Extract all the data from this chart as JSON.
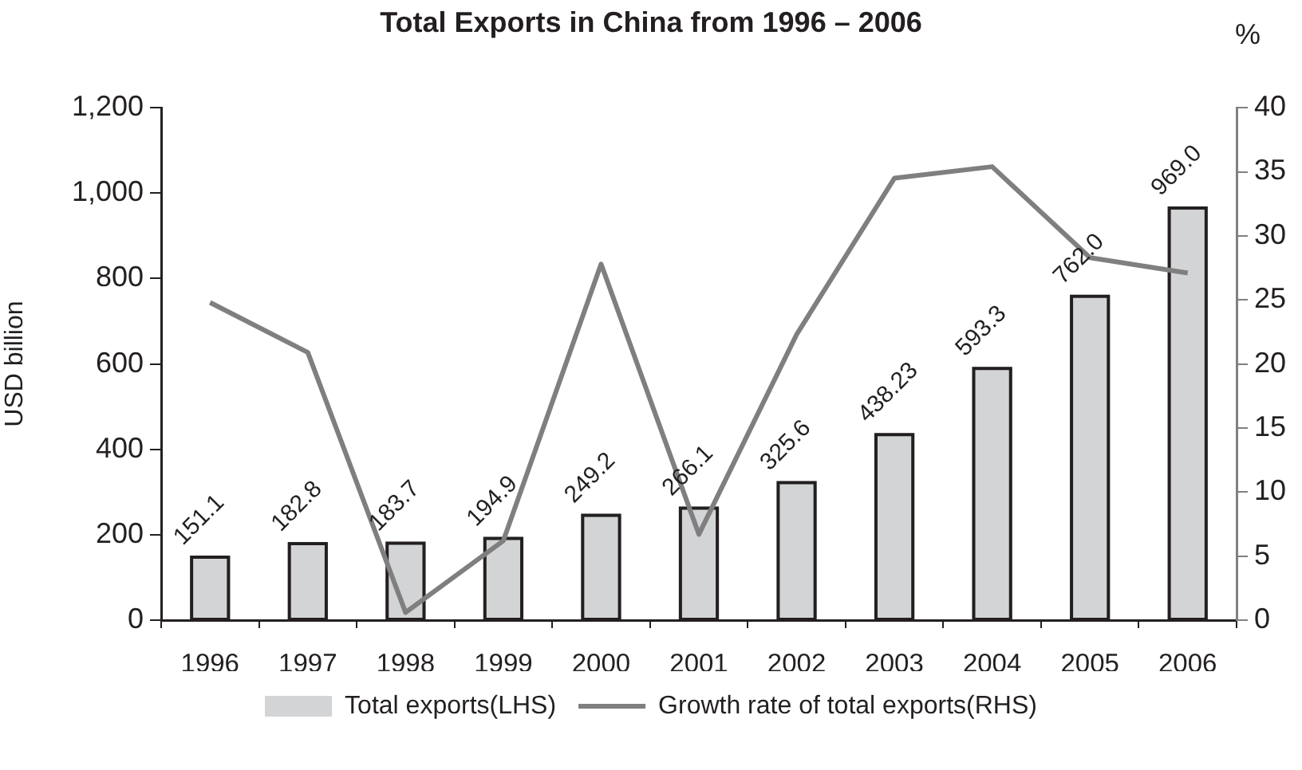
{
  "chart_data": {
    "type": "bar",
    "title": "Total Exports in China from 1996 – 2006",
    "ylabel": "USD billion",
    "y2label": "%",
    "categories": [
      "1996",
      "1997",
      "1998",
      "1999",
      "2000",
      "2001",
      "2002",
      "2003",
      "2004",
      "2005",
      "2006"
    ],
    "series": [
      {
        "name": "Total exports(LHS)",
        "color": "#d3d4d6",
        "values": [
          151.1,
          182.8,
          183.7,
          194.9,
          249.2,
          266.1,
          325.6,
          438.23,
          593.3,
          762.0,
          969.0
        ],
        "value_labels": [
          "151.1",
          "182.8",
          "183.7",
          "194.9",
          "249.2",
          "266.1",
          "325.6",
          "438.23",
          "593.3",
          "762.0",
          "969.0"
        ]
      },
      {
        "name": "Growth rate of total exports(RHS)",
        "type": "line",
        "axis": "y2",
        "color": "#7f7f80",
        "values": [
          24.8,
          20.9,
          0.6,
          6.2,
          27.8,
          6.7,
          22.3,
          34.5,
          35.4,
          28.3,
          27.1
        ]
      }
    ],
    "ylim": [
      0,
      1200
    ],
    "yticks": [
      0,
      200,
      400,
      600,
      800,
      {
        "value": 1000,
        "label": "1,000"
      },
      {
        "value": 1200,
        "label": "1,200"
      }
    ],
    "y2lim": [
      0,
      40
    ],
    "y2ticks": [
      0,
      5,
      10,
      15,
      20,
      25,
      30,
      35,
      40
    ],
    "grid": false,
    "legend": "bottom"
  }
}
